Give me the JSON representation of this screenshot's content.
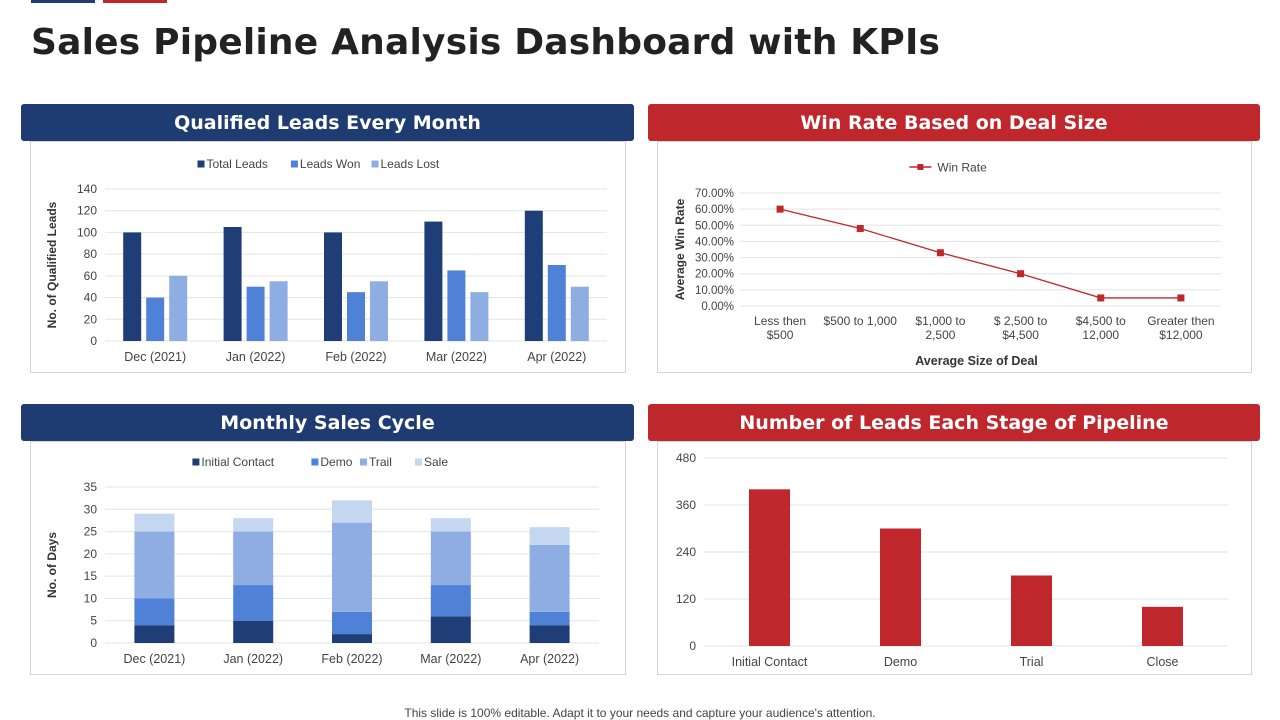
{
  "title": "Sales Pipeline Analysis Dashboard with KPIs",
  "footer": "This slide is 100% editable. Adapt it to your needs and capture your audience's attention.",
  "colors": {
    "navy": "#1e3c72",
    "red": "#c0272d",
    "blue_dark": "#1f3e78",
    "blue_mid": "#4f81d6",
    "blue_light": "#8eaee3",
    "blue_pale": "#c5d6f1"
  },
  "panels": {
    "leads": "Qualified Leads Every Month",
    "winrate": "Win Rate Based on Deal Size",
    "cycle": "Monthly Sales Cycle",
    "pipeline": "Number of Leads Each Stage of Pipeline"
  },
  "chart_data": [
    {
      "type": "bar",
      "title": "Qualified Leads Every Month",
      "ylabel": "No. of Qualified Leads",
      "xlabel": "",
      "categories": [
        "Dec (2021)",
        "Jan (2022)",
        "Feb (2022)",
        "Mar (2022)",
        "Apr (2022)"
      ],
      "ylim": [
        0,
        140
      ],
      "yticks": [
        0,
        20,
        40,
        60,
        80,
        100,
        120,
        140
      ],
      "legend": "top",
      "grid": true,
      "series": [
        {
          "name": "Total Leads",
          "values": [
            100,
            105,
            100,
            110,
            120
          ],
          "color": "#1f3e78"
        },
        {
          "name": "Leads Won",
          "values": [
            40,
            50,
            45,
            65,
            70
          ],
          "color": "#4f81d6"
        },
        {
          "name": "Leads Lost",
          "values": [
            60,
            55,
            55,
            45,
            50
          ],
          "color": "#8eaee3"
        }
      ]
    },
    {
      "type": "line",
      "title": "Win Rate Based on Deal Size",
      "ylabel": "Average Win Rate",
      "xlabel": "Average Size of Deal",
      "categories": [
        [
          "Less then",
          "$500"
        ],
        [
          "$500 to 1,000"
        ],
        [
          "$1,000 to",
          "2,500"
        ],
        [
          "$ 2,500 to",
          "$4,500"
        ],
        [
          "$4,500 to",
          "12,000"
        ],
        [
          "Greater then",
          "$12,000"
        ]
      ],
      "ylim": [
        0,
        70
      ],
      "yticks": [
        "0.00%",
        "10.00%",
        "20.00%",
        "30.00%",
        "40.00%",
        "50.00%",
        "60.00%",
        "70.00%"
      ],
      "legend": "top",
      "grid": true,
      "series": [
        {
          "name": "Win Rate",
          "values": [
            60,
            48,
            33,
            20,
            5,
            5
          ],
          "color": "#c0272d"
        }
      ]
    },
    {
      "type": "bar",
      "stacked": true,
      "title": "Monthly Sales Cycle",
      "ylabel": "No. of Days",
      "xlabel": "",
      "categories": [
        "Dec (2021)",
        "Jan (2022)",
        "Feb (2022)",
        "Mar (2022)",
        "Apr (2022)"
      ],
      "ylim": [
        0,
        35
      ],
      "yticks": [
        0,
        5,
        10,
        15,
        20,
        25,
        30,
        35
      ],
      "legend": "top",
      "grid": true,
      "series": [
        {
          "name": "Initial Contact",
          "values": [
            4,
            5,
            2,
            6,
            4
          ],
          "color": "#1f3e78"
        },
        {
          "name": "Demo",
          "values": [
            6,
            8,
            5,
            7,
            3
          ],
          "color": "#4f81d6"
        },
        {
          "name": "Trail",
          "values": [
            15,
            12,
            20,
            12,
            15
          ],
          "color": "#8eaee3"
        },
        {
          "name": "Sale",
          "values": [
            4,
            3,
            5,
            3,
            4
          ],
          "color": "#c5d6f1"
        }
      ]
    },
    {
      "type": "bar",
      "title": "Number of Leads Each Stage of Pipeline",
      "xlabel": "",
      "ylabel": "",
      "categories": [
        "Initial Contact",
        "Demo",
        "Trial",
        "Close"
      ],
      "ylim": [
        0,
        480
      ],
      "yticks": [
        0,
        120,
        240,
        360,
        480
      ],
      "grid": true,
      "series": [
        {
          "values": [
            400,
            300,
            180,
            100
          ],
          "color": "#c0272d"
        }
      ]
    }
  ]
}
